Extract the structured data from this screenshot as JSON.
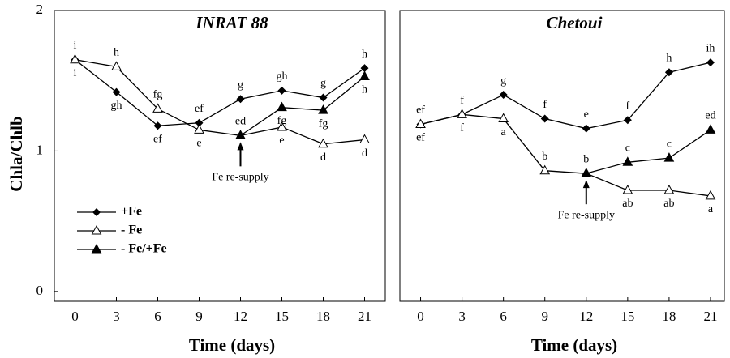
{
  "chart_data": [
    {
      "type": "line",
      "title": "INRAT 88",
      "xlabel": "Time (days)",
      "ylabel": "Chla/Chlb",
      "x": [
        0,
        3,
        6,
        9,
        12,
        15,
        18,
        21
      ],
      "xlim": [
        -1.5,
        22.5
      ],
      "xticks": [
        0,
        3,
        6,
        9,
        12,
        15,
        18,
        21
      ],
      "ylim": [
        -0.07,
        2
      ],
      "yticks": [
        0,
        1,
        2
      ],
      "legend": "lower-left",
      "series": [
        {
          "name": "+Fe",
          "color": "#000000",
          "marker": "diamond",
          "values": [
            1.65,
            1.42,
            1.18,
            1.2,
            1.37,
            1.43,
            1.38,
            1.59
          ],
          "letters": [
            "i",
            "gh",
            "ef",
            "ef",
            "g",
            "gh",
            "g",
            "h"
          ]
        },
        {
          "name": "- Fe",
          "color": "#000000",
          "marker": "open-triangle",
          "values": [
            1.65,
            1.6,
            1.3,
            1.15,
            1.11,
            1.17,
            1.05,
            1.08
          ],
          "letters": [
            "i",
            "h",
            "fg",
            "e",
            "ed",
            "e",
            "d",
            "d"
          ]
        },
        {
          "name": "- Fe/+Fe",
          "color": "#000000",
          "marker": "filled-triangle",
          "values": [
            null,
            null,
            null,
            null,
            1.11,
            1.31,
            1.29,
            1.53
          ],
          "letters": [
            null,
            null,
            null,
            null,
            null,
            "fg",
            "fg",
            "h"
          ]
        }
      ],
      "annotation": {
        "text": "Fe re-supply",
        "x": 12
      }
    },
    {
      "type": "line",
      "title": "Chetoui",
      "xlabel": "Time (days)",
      "x": [
        0,
        3,
        6,
        9,
        12,
        15,
        18,
        21
      ],
      "xlim": [
        -1.5,
        22
      ],
      "xticks": [
        0,
        3,
        6,
        9,
        12,
        15,
        18,
        21
      ],
      "ylim": [
        -0.07,
        2
      ],
      "series": [
        {
          "color": "#000000",
          "marker": "diamond",
          "values": [
            1.19,
            1.26,
            1.4,
            1.23,
            1.16,
            1.22,
            1.56,
            1.63
          ],
          "letters": [
            "ef",
            "f",
            "g",
            "f",
            "e",
            "f",
            "h",
            "ih"
          ]
        },
        {
          "color": "#000000",
          "marker": "open-triangle",
          "values": [
            1.19,
            1.26,
            1.23,
            0.86,
            0.84,
            0.72,
            0.72,
            0.68
          ],
          "letters": [
            "ef",
            "f",
            "a",
            "b",
            "b",
            "ab",
            "ab",
            "a"
          ]
        },
        {
          "color": "#000000",
          "marker": "filled-triangle",
          "values": [
            null,
            null,
            null,
            null,
            0.84,
            0.92,
            0.95,
            1.15
          ],
          "letters": [
            null,
            null,
            null,
            null,
            null,
            "c",
            "c",
            "ed"
          ]
        }
      ],
      "annotation": {
        "text": "Fe re-supply",
        "x": 12
      }
    }
  ]
}
